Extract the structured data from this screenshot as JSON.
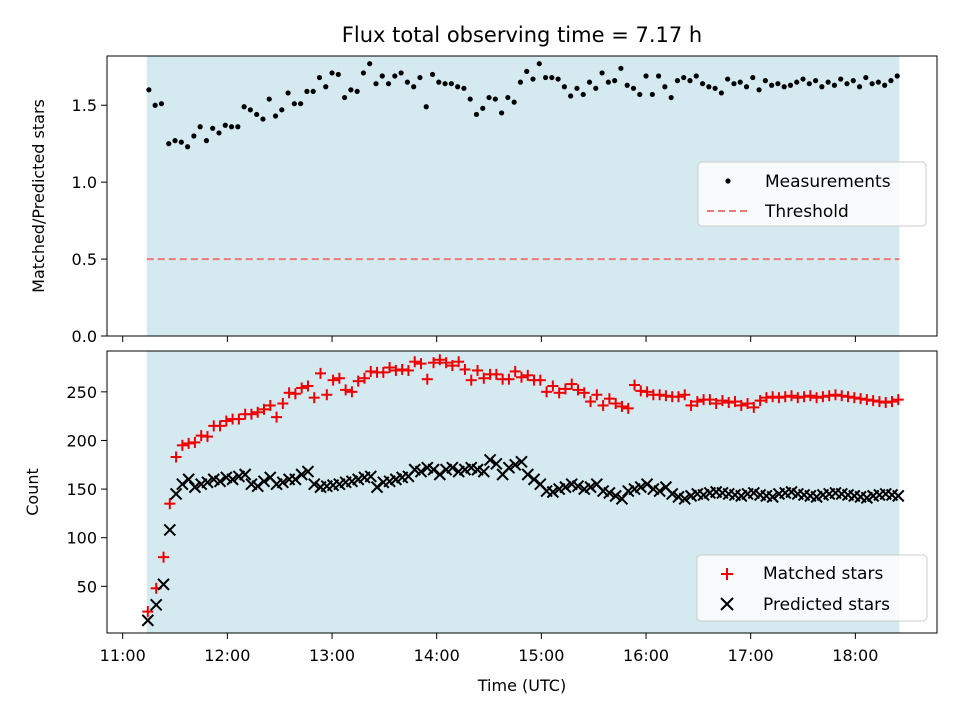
{
  "chart_data": [
    {
      "type": "scatter",
      "title": "Flux total observing time = 7.17 h",
      "ylabel": "Matched/Predicted stars",
      "xlabel": "",
      "x_ticks": [
        "11:00",
        "12:00",
        "13:00",
        "14:00",
        "15:00",
        "16:00",
        "17:00",
        "18:00"
      ],
      "x_tick_hours": [
        11,
        12,
        13,
        14,
        15,
        16,
        17,
        18
      ],
      "xlim_hours": [
        10.85,
        18.78
      ],
      "ylim": [
        0,
        1.82
      ],
      "y_ticks": [
        0.0,
        0.5,
        1.0,
        1.5
      ],
      "y_tick_labels": [
        "0.0",
        "0.5",
        "1.0",
        "1.5"
      ],
      "shaded_span_hours": [
        11.23,
        18.42
      ],
      "shade_color": "#d4eaf0",
      "legend_position": "center-right",
      "series": [
        {
          "name": "Measurements",
          "marker": "dot",
          "color": "#000000",
          "x_hours": [
            11.25,
            11.31,
            11.37,
            11.44,
            11.5,
            11.56,
            11.62,
            11.68,
            11.74,
            11.8,
            11.86,
            11.92,
            11.98,
            12.04,
            12.1,
            12.16,
            12.22,
            12.28,
            12.34,
            12.4,
            12.46,
            12.52,
            12.58,
            12.64,
            12.7,
            12.76,
            12.82,
            12.88,
            12.94,
            13.0,
            13.06,
            13.12,
            13.18,
            13.24,
            13.3,
            13.36,
            13.42,
            13.48,
            13.54,
            13.6,
            13.66,
            13.72,
            13.78,
            13.84,
            13.9,
            13.96,
            14.02,
            14.08,
            14.14,
            14.2,
            14.26,
            14.32,
            14.38,
            14.44,
            14.5,
            14.56,
            14.62,
            14.68,
            14.74,
            14.8,
            14.86,
            14.92,
            14.98,
            15.04,
            15.1,
            15.16,
            15.22,
            15.28,
            15.34,
            15.4,
            15.46,
            15.52,
            15.58,
            15.64,
            15.7,
            15.76,
            15.82,
            15.88,
            15.94,
            16.0,
            16.06,
            16.12,
            16.18,
            16.24,
            16.3,
            16.36,
            16.42,
            16.48,
            16.54,
            16.6,
            16.66,
            16.72,
            16.78,
            16.84,
            16.9,
            16.96,
            17.02,
            17.08,
            17.14,
            17.2,
            17.26,
            17.32,
            17.38,
            17.44,
            17.5,
            17.56,
            17.62,
            17.68,
            17.74,
            17.8,
            17.86,
            17.92,
            17.98,
            18.04,
            18.1,
            18.16,
            18.22,
            18.28,
            18.34,
            18.4
          ],
          "values": [
            1.6,
            1.5,
            1.51,
            1.25,
            1.27,
            1.26,
            1.23,
            1.3,
            1.36,
            1.27,
            1.35,
            1.32,
            1.37,
            1.36,
            1.36,
            1.49,
            1.47,
            1.44,
            1.41,
            1.54,
            1.43,
            1.47,
            1.58,
            1.51,
            1.51,
            1.59,
            1.59,
            1.68,
            1.62,
            1.71,
            1.7,
            1.55,
            1.6,
            1.59,
            1.71,
            1.77,
            1.64,
            1.69,
            1.64,
            1.69,
            1.71,
            1.65,
            1.62,
            1.68,
            1.49,
            1.7,
            1.65,
            1.64,
            1.64,
            1.62,
            1.61,
            1.54,
            1.44,
            1.48,
            1.55,
            1.54,
            1.45,
            1.55,
            1.52,
            1.65,
            1.72,
            1.67,
            1.77,
            1.68,
            1.68,
            1.67,
            1.62,
            1.56,
            1.61,
            1.57,
            1.65,
            1.61,
            1.71,
            1.65,
            1.66,
            1.74,
            1.63,
            1.61,
            1.57,
            1.69,
            1.57,
            1.69,
            1.62,
            1.55,
            1.66,
            1.68,
            1.66,
            1.69,
            1.64,
            1.62,
            1.61,
            1.58,
            1.67,
            1.64,
            1.65,
            1.62,
            1.68,
            1.6,
            1.66,
            1.63,
            1.64,
            1.62,
            1.63,
            1.65,
            1.67,
            1.64,
            1.66,
            1.62,
            1.65,
            1.63,
            1.67,
            1.64,
            1.66,
            1.62,
            1.68,
            1.64,
            1.65,
            1.63,
            1.66,
            1.69
          ]
        },
        {
          "name": "Threshold",
          "marker": "dashed-line",
          "color": "#f07878",
          "x_hours": [
            11.23,
            18.42
          ],
          "values": [
            0.5,
            0.5
          ]
        }
      ]
    },
    {
      "type": "scatter",
      "title": "",
      "xlabel": "Time (UTC)",
      "ylabel": "Count",
      "x_ticks": [
        "11:00",
        "12:00",
        "13:00",
        "14:00",
        "15:00",
        "16:00",
        "17:00",
        "18:00"
      ],
      "x_tick_hours": [
        11,
        12,
        13,
        14,
        15,
        16,
        17,
        18
      ],
      "xlim_hours": [
        10.85,
        18.78
      ],
      "ylim": [
        2,
        292
      ],
      "y_ticks": [
        50,
        100,
        150,
        200,
        250
      ],
      "y_tick_labels": [
        "50",
        "100",
        "150",
        "200",
        "250"
      ],
      "shaded_span_hours": [
        11.23,
        18.42
      ],
      "shade_color": "#d4eaf0",
      "legend_position": "lower-right",
      "series": [
        {
          "name": "Matched stars",
          "marker": "plus",
          "color": "#ee0000",
          "x_hours": [
            11.24,
            11.32,
            11.39,
            11.45,
            11.51,
            11.57,
            11.63,
            11.69,
            11.75,
            11.81,
            11.87,
            11.93,
            11.99,
            12.05,
            12.11,
            12.17,
            12.23,
            12.29,
            12.35,
            12.41,
            12.47,
            12.53,
            12.59,
            12.65,
            12.71,
            12.77,
            12.83,
            12.89,
            12.95,
            13.01,
            13.07,
            13.13,
            13.19,
            13.25,
            13.31,
            13.37,
            13.43,
            13.49,
            13.55,
            13.61,
            13.67,
            13.73,
            13.79,
            13.85,
            13.91,
            13.97,
            14.03,
            14.09,
            14.15,
            14.21,
            14.27,
            14.33,
            14.39,
            14.45,
            14.51,
            14.57,
            14.63,
            14.69,
            14.75,
            14.81,
            14.87,
            14.93,
            14.99,
            15.05,
            15.11,
            15.17,
            15.23,
            15.29,
            15.35,
            15.41,
            15.47,
            15.53,
            15.59,
            15.65,
            15.71,
            15.77,
            15.83,
            15.89,
            15.95,
            16.01,
            16.07,
            16.13,
            16.19,
            16.25,
            16.31,
            16.37,
            16.43,
            16.49,
            16.55,
            16.61,
            16.67,
            16.73,
            16.79,
            16.85,
            16.91,
            16.97,
            17.03,
            17.09,
            17.15,
            17.21,
            17.27,
            17.33,
            17.39,
            17.45,
            17.51,
            17.57,
            17.63,
            17.69,
            17.75,
            17.81,
            17.87,
            17.93,
            17.99,
            18.05,
            18.11,
            18.17,
            18.23,
            18.29,
            18.35,
            18.41
          ],
          "values": [
            24,
            48,
            80,
            135,
            183,
            195,
            197,
            198,
            205,
            204,
            215,
            215,
            220,
            222,
            222,
            227,
            227,
            229,
            232,
            236,
            224,
            238,
            249,
            248,
            254,
            256,
            244,
            269,
            247,
            262,
            264,
            252,
            250,
            261,
            264,
            271,
            270,
            270,
            275,
            272,
            273,
            272,
            281,
            279,
            263,
            280,
            283,
            280,
            277,
            281,
            273,
            262,
            272,
            264,
            268,
            268,
            263,
            263,
            271,
            265,
            267,
            262,
            262,
            250,
            256,
            249,
            253,
            258,
            252,
            249,
            240,
            247,
            236,
            243,
            238,
            235,
            233,
            257,
            251,
            250,
            247,
            247,
            246,
            245,
            245,
            247,
            236,
            240,
            242,
            242,
            238,
            241,
            239,
            240,
            236,
            238,
            234,
            241,
            244,
            245,
            244,
            245,
            246,
            244,
            245,
            246,
            244,
            245,
            246,
            247,
            246,
            245,
            244,
            243,
            242,
            241,
            240,
            239,
            240,
            242
          ],
          "truncate_to": 120
        },
        {
          "name": "Predicted stars",
          "marker": "x",
          "color": "#000000",
          "x_hours": [
            11.24,
            11.32,
            11.39,
            11.45,
            11.51,
            11.57,
            11.63,
            11.69,
            11.75,
            11.81,
            11.87,
            11.93,
            11.99,
            12.05,
            12.11,
            12.17,
            12.23,
            12.29,
            12.35,
            12.41,
            12.47,
            12.53,
            12.59,
            12.65,
            12.71,
            12.77,
            12.83,
            12.89,
            12.95,
            13.01,
            13.07,
            13.13,
            13.19,
            13.25,
            13.31,
            13.37,
            13.43,
            13.49,
            13.55,
            13.61,
            13.67,
            13.73,
            13.79,
            13.85,
            13.91,
            13.97,
            14.03,
            14.09,
            14.15,
            14.21,
            14.27,
            14.33,
            14.39,
            14.45,
            14.51,
            14.57,
            14.63,
            14.69,
            14.75,
            14.81,
            14.87,
            14.93,
            14.99,
            15.05,
            15.11,
            15.17,
            15.23,
            15.29,
            15.35,
            15.41,
            15.47,
            15.53,
            15.59,
            15.65,
            15.71,
            15.77,
            15.83,
            15.89,
            15.95,
            16.01,
            16.07,
            16.13,
            16.19,
            16.25,
            16.31,
            16.37,
            16.43,
            16.49,
            16.55,
            16.61,
            16.67,
            16.73,
            16.79,
            16.85,
            16.91,
            16.97,
            17.03,
            17.09,
            17.15,
            17.21,
            17.27,
            17.33,
            17.39,
            17.45,
            17.51,
            17.57,
            17.63,
            17.69,
            17.75,
            17.81,
            17.87,
            17.93,
            17.99,
            18.05,
            18.11,
            18.17,
            18.23,
            18.29,
            18.35,
            18.41
          ],
          "values": [
            15,
            31,
            52,
            108,
            145,
            155,
            160,
            152,
            155,
            157,
            160,
            158,
            162,
            160,
            163,
            165,
            155,
            153,
            158,
            162,
            155,
            157,
            160,
            160,
            165,
            168,
            155,
            152,
            153,
            154,
            155,
            157,
            158,
            160,
            162,
            163,
            152,
            157,
            158,
            160,
            162,
            163,
            170,
            168,
            172,
            170,
            165,
            170,
            172,
            168,
            170,
            172,
            170,
            168,
            180,
            176,
            165,
            172,
            175,
            178,
            165,
            160,
            155,
            148,
            147,
            150,
            152,
            155,
            153,
            150,
            152,
            155,
            148,
            146,
            143,
            140,
            148,
            150,
            152,
            155,
            150,
            148,
            152,
            145,
            142,
            140,
            143,
            145,
            144,
            146,
            147,
            146,
            145,
            144,
            143,
            145,
            146,
            144,
            143,
            142,
            145,
            146,
            147,
            145,
            144,
            143,
            142,
            144,
            145,
            146,
            145,
            144,
            143,
            142,
            141,
            143,
            144,
            145,
            144,
            143
          ],
          "truncate_to": 120
        }
      ]
    }
  ]
}
